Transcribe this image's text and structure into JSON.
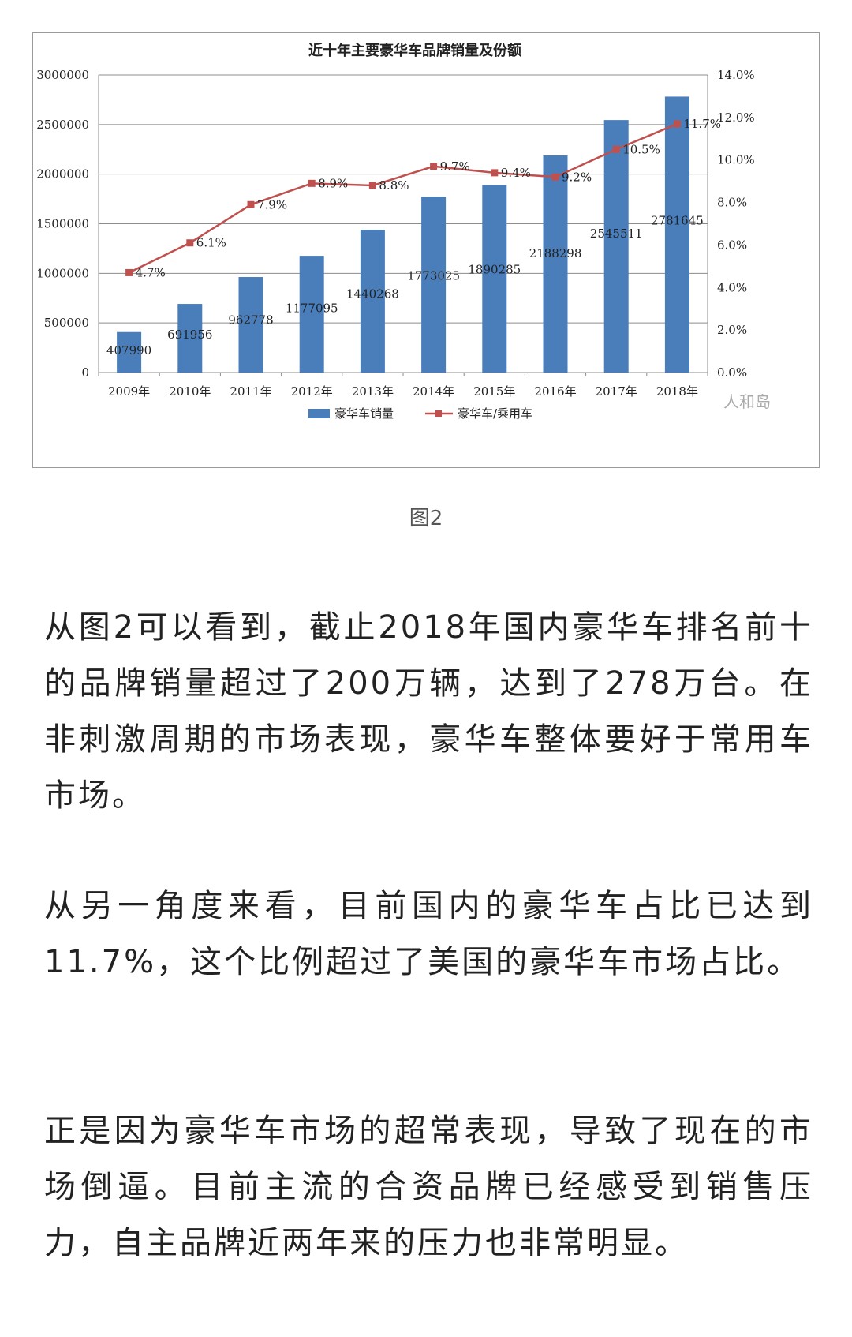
{
  "chart_data": {
    "type": "bar+line",
    "title": "近十年主要豪华车品牌销量及份额",
    "categories": [
      "2009年",
      "2010年",
      "2011年",
      "2012年",
      "2013年",
      "2014年",
      "2015年",
      "2016年",
      "2017年",
      "2018年"
    ],
    "series": [
      {
        "name": "豪华车销量",
        "type": "bar",
        "axis": "left",
        "values": [
          407990,
          691956,
          962778,
          1177095,
          1440268,
          1773025,
          1890285,
          2188298,
          2545511,
          2781645
        ],
        "labels": [
          "407990",
          "691956",
          "962778",
          "1177095",
          "1440268",
          "1773025",
          "1890285",
          "2188298",
          "2545511",
          "2781645"
        ],
        "color": "#4a7ebb"
      },
      {
        "name": "豪华车/乘用车",
        "type": "line",
        "axis": "right",
        "values": [
          4.7,
          6.1,
          7.9,
          8.9,
          8.8,
          9.7,
          9.4,
          9.2,
          10.5,
          11.7
        ],
        "labels": [
          "4.7%",
          "6.1%",
          "7.9%",
          "8.9%",
          "8.8%",
          "9.7%",
          "9.4%",
          "9.2%",
          "10.5%",
          "11.7%"
        ],
        "color": "#c0504d"
      }
    ],
    "y_left": {
      "min": 0,
      "max": 3000000,
      "ticks": [
        "0",
        "500000",
        "1000000",
        "1500000",
        "2000000",
        "2500000",
        "3000000"
      ]
    },
    "y_right": {
      "min": 0,
      "max": 14,
      "ticks": [
        "0.0%",
        "2.0%",
        "4.0%",
        "6.0%",
        "8.0%",
        "10.0%",
        "12.0%",
        "14.0%"
      ]
    },
    "grid": true,
    "legend": "bottom",
    "watermark": "人和岛"
  },
  "caption": "图2",
  "paragraphs": [
    "从图2可以看到，截止2018年国内豪华车排名前十的品牌销量超过了200万辆，达到了278万台。在非刺激周期的市场表现，豪华车整体要好于常用车市场。",
    "从另一角度来看，目前国内的豪华车占比已达到11.7%，这个比例超过了美国的豪华车市场占比。",
    "正是因为豪华车市场的超常表现，导致了现在的市场倒逼。目前主流的合资品牌已经感受到销售压力，自主品牌近两年来的压力也非常明显。"
  ]
}
